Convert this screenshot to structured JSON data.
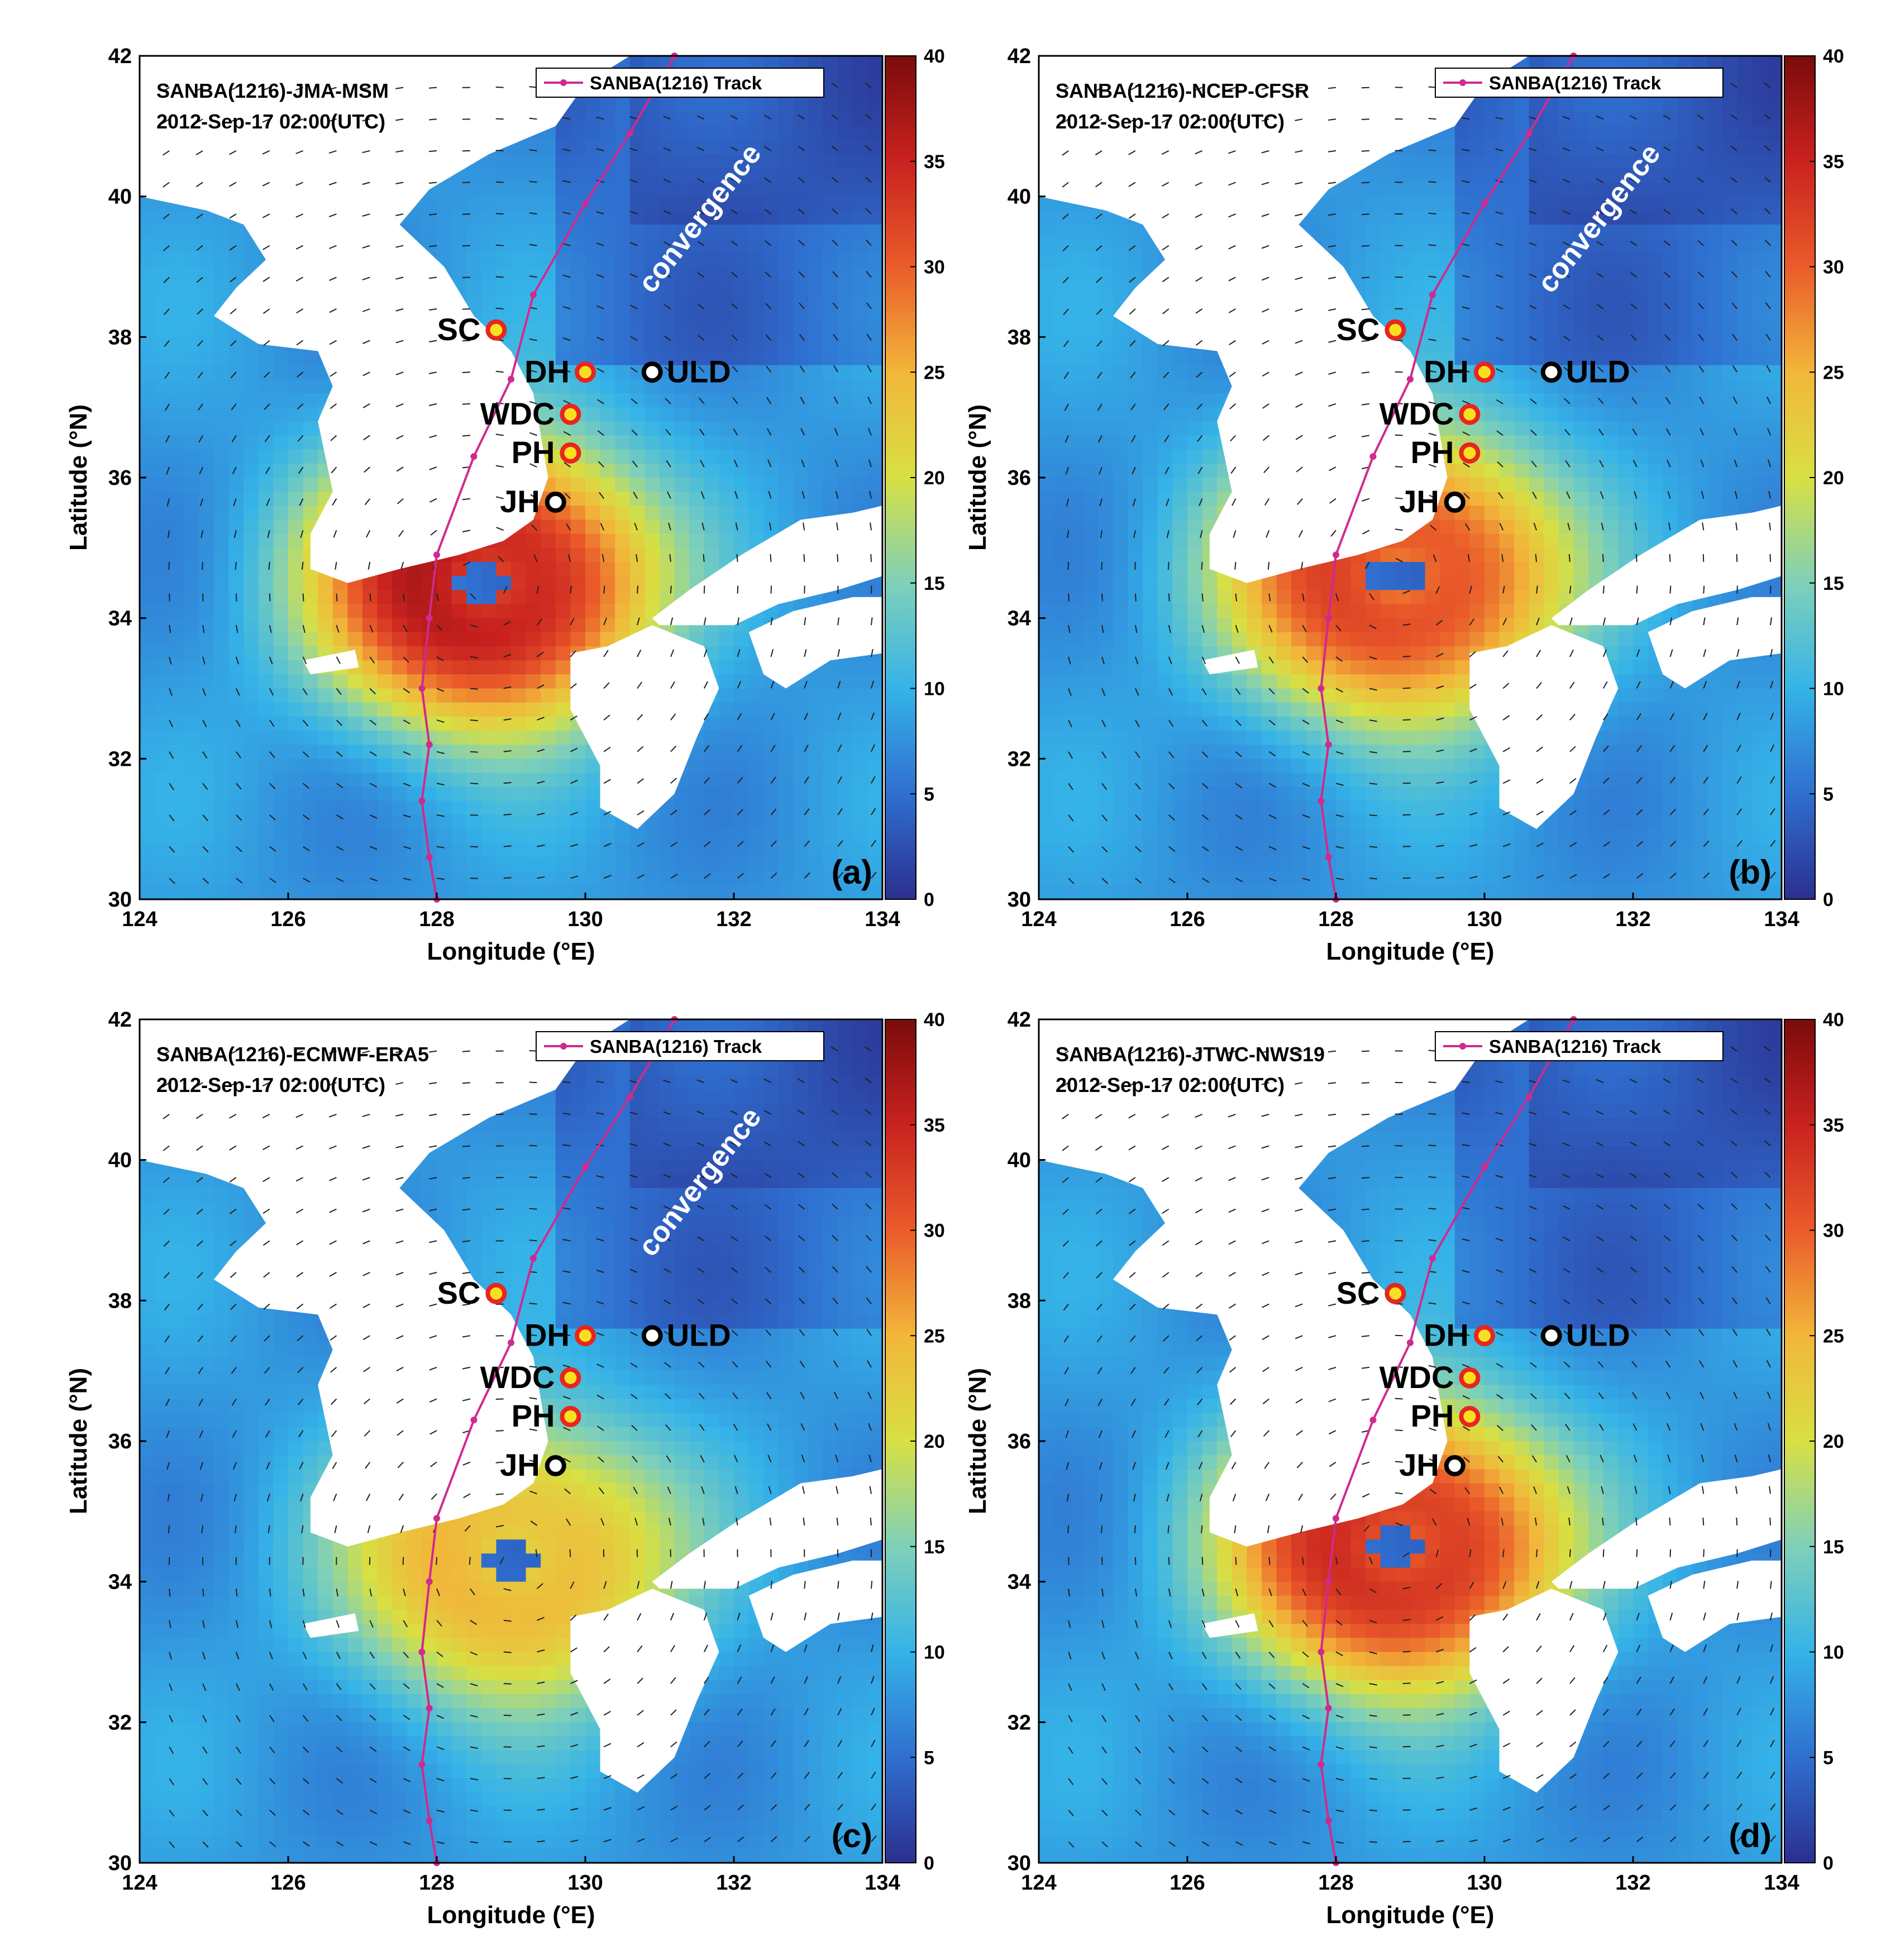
{
  "axes": {
    "xlabel": "Longitude (°E)",
    "ylabel": "Latitude (°N)",
    "xlim": [
      124,
      134
    ],
    "ylim": [
      30,
      42
    ],
    "xticks": [
      "124",
      "126",
      "128",
      "130",
      "132",
      "134"
    ],
    "yticks": [
      "30",
      "32",
      "34",
      "36",
      "38",
      "40",
      "42"
    ]
  },
  "colorbar": {
    "range": [
      0,
      40
    ],
    "ticks": [
      "0",
      "5",
      "10",
      "15",
      "20",
      "25",
      "30",
      "35",
      "40"
    ],
    "colormap": [
      "#2b2f8f",
      "#2f6fd0",
      "#35b3e8",
      "#7fd0b8",
      "#d8e043",
      "#f2b63a",
      "#ea5b2a",
      "#c9221f",
      "#7a0b0b"
    ]
  },
  "track": {
    "legend_label": "SANBA(1216) Track",
    "color": "#d02a8e",
    "points": [
      {
        "lon": 128.0,
        "lat": 30.0
      },
      {
        "lon": 127.9,
        "lat": 30.6
      },
      {
        "lon": 127.8,
        "lat": 31.4
      },
      {
        "lon": 127.9,
        "lat": 32.2
      },
      {
        "lon": 127.8,
        "lat": 33.0
      },
      {
        "lon": 127.9,
        "lat": 34.0
      },
      {
        "lon": 128.0,
        "lat": 34.9
      },
      {
        "lon": 128.5,
        "lat": 36.3
      },
      {
        "lon": 129.0,
        "lat": 37.4
      },
      {
        "lon": 129.3,
        "lat": 38.6
      },
      {
        "lon": 130.0,
        "lat": 39.9
      },
      {
        "lon": 130.6,
        "lat": 40.9
      },
      {
        "lon": 131.2,
        "lat": 42.0
      }
    ]
  },
  "stations": [
    {
      "label": "SC",
      "lon": 128.8,
      "lat": 38.1,
      "style": "red"
    },
    {
      "label": "DH",
      "lon": 130.0,
      "lat": 37.5,
      "style": "red"
    },
    {
      "label": "WDC",
      "lon": 129.8,
      "lat": 36.9,
      "style": "red"
    },
    {
      "label": "PH",
      "lon": 129.8,
      "lat": 36.35,
      "style": "red"
    },
    {
      "label": "JH",
      "lon": 129.6,
      "lat": 35.65,
      "style": "black"
    },
    {
      "label": "ULD",
      "lon": 130.9,
      "lat": 37.5,
      "style": "black"
    }
  ],
  "panels": [
    {
      "id": "a",
      "title": "SANBA(1216)-JMA-MSM",
      "time": "2012-Sep-17 02:00(UTC)",
      "panel_label": "(a)",
      "annotation": "convergence",
      "max_center": {
        "lon": 128.6,
        "lat": 34.5
      },
      "peak": 36
    },
    {
      "id": "b",
      "title": "SANBA(1216)-NCEP-CFSR",
      "time": "2012-Sep-17 02:00(UTC)",
      "panel_label": "(b)",
      "annotation": "convergence",
      "max_center": {
        "lon": 128.8,
        "lat": 34.6
      },
      "peak": 32
    },
    {
      "id": "c",
      "title": "SANBA(1216)-ECMWF-ERA5",
      "time": "2012-Sep-17 02:00(UTC)",
      "panel_label": "(c)",
      "annotation": "convergence",
      "max_center": {
        "lon": 129.0,
        "lat": 34.3
      },
      "peak": 25
    },
    {
      "id": "d",
      "title": "SANBA(1216)-JTWC-NWS19",
      "time": "2012-Sep-17 02:00(UTC)",
      "panel_label": "(d)",
      "annotation": "",
      "max_center": {
        "lon": 128.8,
        "lat": 34.5
      },
      "peak": 34
    }
  ],
  "colors": {
    "land": "#ffffff",
    "station_red_fill": "#f7e020",
    "station_red_ring": "#e8251f",
    "station_black_fill": "#ffffff",
    "station_black_ring": "#000000",
    "annotation_text": "#ffffff"
  }
}
